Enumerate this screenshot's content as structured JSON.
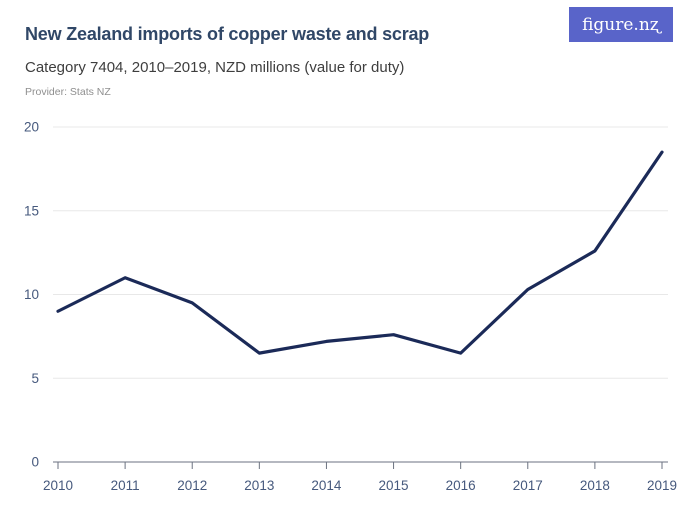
{
  "header": {
    "title": "New Zealand imports of copper waste and scrap",
    "subtitle": "Category 7404, 2010–2019, NZD millions (value for duty)",
    "provider": "Provider: Stats NZ",
    "logo_text": "figure.nʐ"
  },
  "colors": {
    "title": "#304767",
    "subtitle": "#3e3e3e",
    "provider": "#8f8f8f",
    "logo_bg": "#5964c9",
    "logo_fg": "#ffffff",
    "line": "#1b2a58",
    "gridline": "#e8e8e8",
    "axis": "#6b7280",
    "tick_label": "#46597d"
  },
  "chart_data": {
    "type": "line",
    "title": "New Zealand imports of copper waste and scrap",
    "subtitle": "Category 7404, 2010–2019, NZD millions (value for duty)",
    "unit": "NZD millions (value for duty)",
    "categories": [
      "2010",
      "2011",
      "2012",
      "2013",
      "2014",
      "2015",
      "2016",
      "2017",
      "2018",
      "2019"
    ],
    "values": [
      9.0,
      11.0,
      9.5,
      6.5,
      7.2,
      7.6,
      6.5,
      10.3,
      12.6,
      18.5
    ],
    "xlabel": "",
    "ylabel": "",
    "ylim": [
      0,
      20
    ],
    "yticks": [
      0,
      5,
      10,
      15,
      20
    ],
    "grid": true,
    "legend": false
  }
}
